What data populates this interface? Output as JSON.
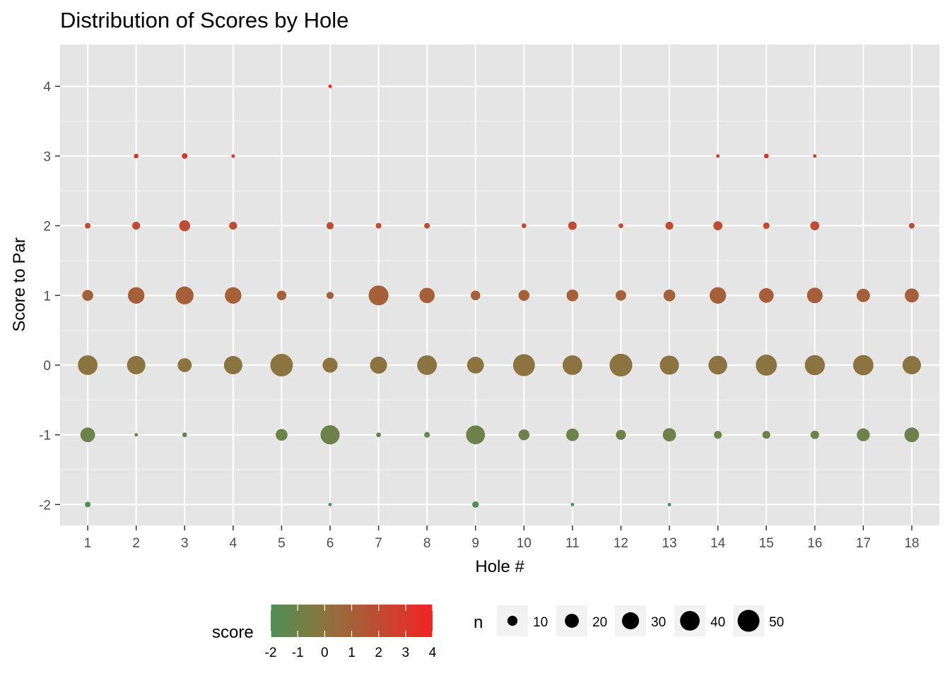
{
  "chart_data": {
    "type": "scatter",
    "title": "Distribution of Scores by Hole",
    "xlabel": "Hole #",
    "ylabel": "Score to Par",
    "x_ticks": [
      1,
      2,
      3,
      4,
      5,
      6,
      7,
      8,
      9,
      10,
      11,
      12,
      13,
      14,
      15,
      16,
      17,
      18
    ],
    "y_ticks": [
      -2,
      -1,
      0,
      1,
      2,
      3,
      4
    ],
    "xlim": [
      0.43,
      18.57
    ],
    "ylim": [
      -2.3,
      4.6
    ],
    "grid": true,
    "color_scale": {
      "name": "score",
      "low": "#4f8f55",
      "mid": "#8b7440",
      "high": "#f22424",
      "ticks": [
        -2,
        -1,
        0,
        1,
        2,
        3,
        4
      ]
    },
    "size_legend": {
      "name": "n",
      "ticks": [
        10,
        20,
        30,
        40,
        50
      ]
    },
    "legend_position": "bottom",
    "points": [
      {
        "hole": 1,
        "score": -2,
        "n": 3
      },
      {
        "hole": 1,
        "score": -1,
        "n": 22
      },
      {
        "hole": 1,
        "score": 0,
        "n": 40
      },
      {
        "hole": 1,
        "score": 1,
        "n": 12
      },
      {
        "hole": 1,
        "score": 2,
        "n": 3
      },
      {
        "hole": 2,
        "score": -1,
        "n": 1
      },
      {
        "hole": 2,
        "score": 0,
        "n": 35
      },
      {
        "hole": 2,
        "score": 1,
        "n": 28
      },
      {
        "hole": 2,
        "score": 2,
        "n": 6
      },
      {
        "hole": 2,
        "score": 3,
        "n": 2
      },
      {
        "hole": 3,
        "score": -1,
        "n": 2
      },
      {
        "hole": 3,
        "score": 0,
        "n": 20
      },
      {
        "hole": 3,
        "score": 1,
        "n": 33
      },
      {
        "hole": 3,
        "score": 2,
        "n": 12
      },
      {
        "hole": 3,
        "score": 3,
        "n": 3
      },
      {
        "hole": 4,
        "score": 0,
        "n": 35
      },
      {
        "hole": 4,
        "score": 1,
        "n": 28
      },
      {
        "hole": 4,
        "score": 2,
        "n": 6
      },
      {
        "hole": 4,
        "score": 3,
        "n": 1
      },
      {
        "hole": 5,
        "score": -1,
        "n": 14
      },
      {
        "hole": 5,
        "score": 0,
        "n": 53
      },
      {
        "hole": 5,
        "score": 1,
        "n": 9
      },
      {
        "hole": 6,
        "score": -2,
        "n": 1
      },
      {
        "hole": 6,
        "score": -1,
        "n": 38
      },
      {
        "hole": 6,
        "score": 0,
        "n": 23
      },
      {
        "hole": 6,
        "score": 1,
        "n": 5
      },
      {
        "hole": 6,
        "score": 2,
        "n": 5
      },
      {
        "hole": 6,
        "score": 4,
        "n": 1
      },
      {
        "hole": 7,
        "score": -1,
        "n": 2
      },
      {
        "hole": 7,
        "score": 0,
        "n": 30
      },
      {
        "hole": 7,
        "score": 1,
        "n": 41
      },
      {
        "hole": 7,
        "score": 2,
        "n": 3
      },
      {
        "hole": 8,
        "score": -1,
        "n": 3
      },
      {
        "hole": 8,
        "score": 0,
        "n": 40
      },
      {
        "hole": 8,
        "score": 1,
        "n": 24
      },
      {
        "hole": 8,
        "score": 2,
        "n": 3
      },
      {
        "hole": 9,
        "score": -2,
        "n": 4
      },
      {
        "hole": 9,
        "score": -1,
        "n": 37
      },
      {
        "hole": 9,
        "score": 0,
        "n": 29
      },
      {
        "hole": 9,
        "score": 1,
        "n": 9
      },
      {
        "hole": 10,
        "score": -1,
        "n": 12
      },
      {
        "hole": 10,
        "score": 0,
        "n": 50
      },
      {
        "hole": 10,
        "score": 1,
        "n": 12
      },
      {
        "hole": 10,
        "score": 2,
        "n": 2
      },
      {
        "hole": 11,
        "score": -2,
        "n": 1
      },
      {
        "hole": 11,
        "score": -1,
        "n": 16
      },
      {
        "hole": 11,
        "score": 0,
        "n": 40
      },
      {
        "hole": 11,
        "score": 1,
        "n": 14
      },
      {
        "hole": 11,
        "score": 2,
        "n": 7
      },
      {
        "hole": 12,
        "score": -1,
        "n": 10
      },
      {
        "hole": 12,
        "score": 0,
        "n": 54
      },
      {
        "hole": 12,
        "score": 1,
        "n": 11
      },
      {
        "hole": 12,
        "score": 2,
        "n": 2
      },
      {
        "hole": 13,
        "score": -2,
        "n": 1
      },
      {
        "hole": 13,
        "score": -1,
        "n": 18
      },
      {
        "hole": 13,
        "score": 0,
        "n": 38
      },
      {
        "hole": 13,
        "score": 1,
        "n": 14
      },
      {
        "hole": 13,
        "score": 2,
        "n": 6
      },
      {
        "hole": 14,
        "score": -1,
        "n": 6
      },
      {
        "hole": 14,
        "score": 0,
        "n": 36
      },
      {
        "hole": 14,
        "score": 1,
        "n": 28
      },
      {
        "hole": 14,
        "score": 2,
        "n": 8
      },
      {
        "hole": 14,
        "score": 3,
        "n": 1
      },
      {
        "hole": 15,
        "score": -1,
        "n": 6
      },
      {
        "hole": 15,
        "score": 0,
        "n": 46
      },
      {
        "hole": 15,
        "score": 1,
        "n": 22
      },
      {
        "hole": 15,
        "score": 2,
        "n": 4
      },
      {
        "hole": 15,
        "score": 3,
        "n": 2
      },
      {
        "hole": 16,
        "score": -1,
        "n": 7
      },
      {
        "hole": 16,
        "score": 0,
        "n": 42
      },
      {
        "hole": 16,
        "score": 1,
        "n": 25
      },
      {
        "hole": 16,
        "score": 2,
        "n": 8
      },
      {
        "hole": 16,
        "score": 3,
        "n": 1
      },
      {
        "hole": 17,
        "score": -1,
        "n": 17
      },
      {
        "hole": 17,
        "score": 0,
        "n": 43
      },
      {
        "hole": 17,
        "score": 1,
        "n": 18
      },
      {
        "hole": 18,
        "score": -1,
        "n": 22
      },
      {
        "hole": 18,
        "score": 0,
        "n": 35
      },
      {
        "hole": 18,
        "score": 1,
        "n": 20
      },
      {
        "hole": 18,
        "score": 2,
        "n": 3
      }
    ]
  }
}
